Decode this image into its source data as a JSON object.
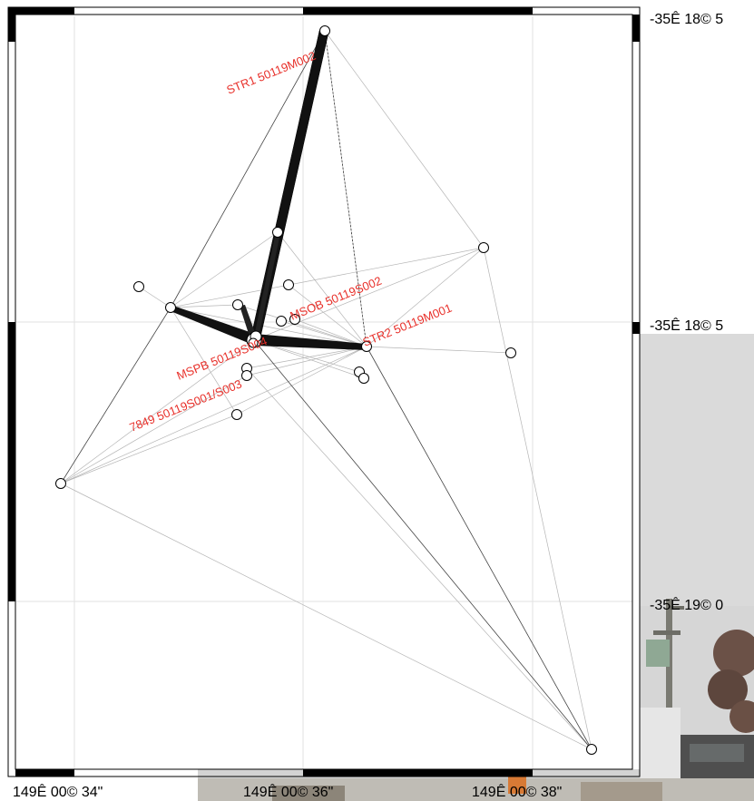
{
  "map": {
    "station_labels": [
      {
        "id": "STR1",
        "text": "STR1 50119M002"
      },
      {
        "id": "MSOB",
        "text": "MSOB 50119S002"
      },
      {
        "id": "STR2",
        "text": "STR2 50119M001"
      },
      {
        "id": "MSPB",
        "text": "MSPB 50119S004"
      },
      {
        "id": "7849",
        "text": "7849 50119S001/S003"
      }
    ],
    "lat_labels": [
      "-35Ê 18© 5",
      "-35Ê 18© 5",
      "-35Ê 19© 0"
    ],
    "lon_labels": [
      "149Ê 00© 34\"",
      "149Ê 00© 36\"",
      "149Ê 00© 38\""
    ],
    "colors": {
      "label_red": "#e8302a",
      "frame": "#000000",
      "grid": "#dddddd",
      "photo_sky": "#d8d8d8"
    }
  }
}
